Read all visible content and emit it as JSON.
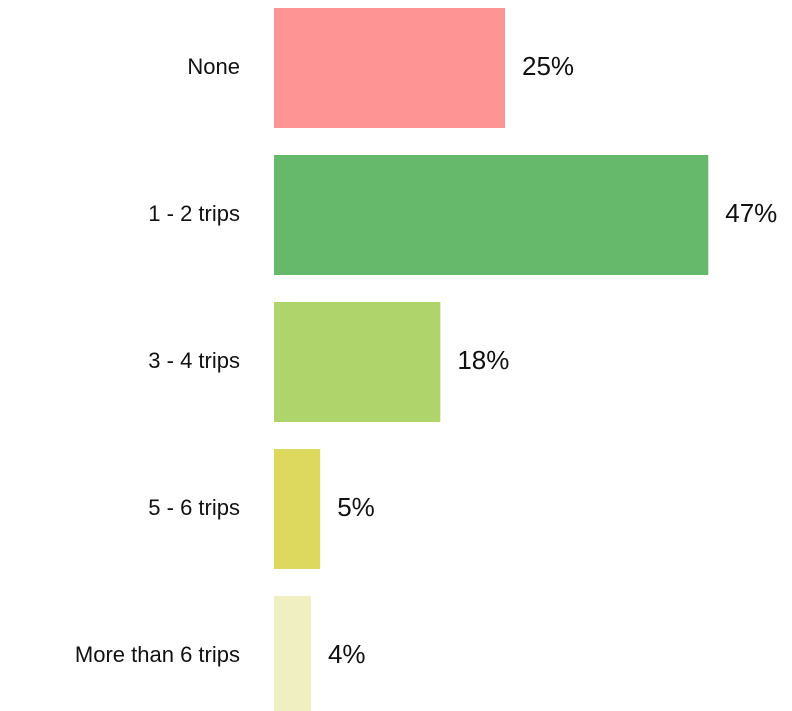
{
  "chart_data": {
    "type": "bar",
    "orientation": "horizontal",
    "categories": [
      "None",
      "1 - 2 trips",
      "3 - 4 trips",
      "5 - 6 trips",
      "More than 6 trips"
    ],
    "values": [
      25,
      47,
      18,
      5,
      4
    ],
    "value_labels": [
      "25%",
      "47%",
      "18%",
      "5%",
      "4%"
    ],
    "colors": [
      "#ff9494",
      "#66b96b",
      "#b0d46c",
      "#dcd95e",
      "#f0efc2"
    ]
  }
}
